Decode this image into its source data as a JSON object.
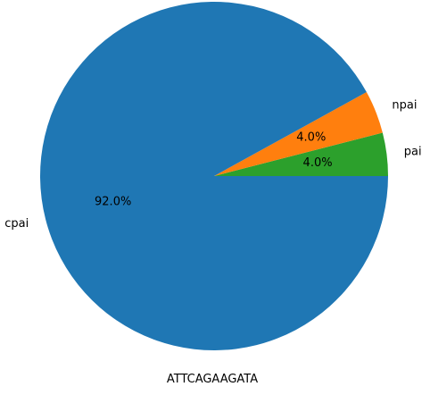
{
  "chart_data": {
    "type": "pie",
    "title": "",
    "xlabel": "ATTCAGAAGATA",
    "ylabel": "",
    "start_angle_deg": 0,
    "direction": "counterclockwise",
    "slices": [
      {
        "label": "pai",
        "value": 4.0,
        "pct_label": "4.0%",
        "color": "#2ca02c"
      },
      {
        "label": "npai",
        "value": 4.0,
        "pct_label": "4.0%",
        "color": "#ff7f0e"
      },
      {
        "label": "cpai",
        "value": 92.0,
        "pct_label": "92.0%",
        "color": "#1f77b4"
      }
    ]
  }
}
